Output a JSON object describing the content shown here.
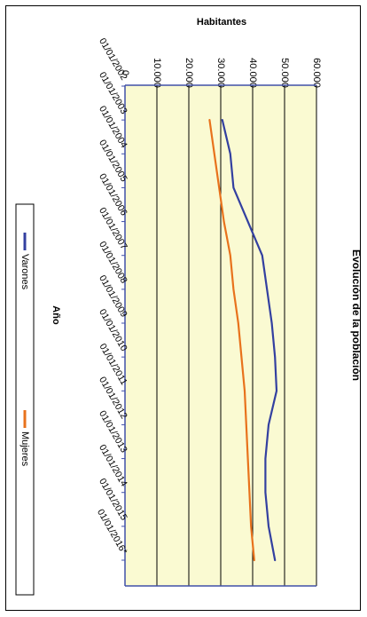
{
  "chart_data": {
    "type": "line",
    "title": "Evolución de la población",
    "xlabel": "Año",
    "ylabel": "Habitantes",
    "categories": [
      "01/01/2002",
      "01/01/2003",
      "01/01/2004",
      "01/01/2005",
      "01/01/2006",
      "01/01/2007",
      "01/01/2008",
      "01/01/2009",
      "01/01/2010",
      "01/01/2011",
      "01/01/2012",
      "01/01/2013",
      "01/01/2014",
      "01/01/2015",
      "01/01/2016*"
    ],
    "y_ticks": [
      "0",
      "10.000",
      "20.000",
      "30.000",
      "40.000",
      "50.000",
      "60.000"
    ],
    "ylim": [
      0,
      60000
    ],
    "grid": true,
    "legend_position": "bottom",
    "orientation": "rotated 90° clockwise",
    "plot_background": "#fafad2",
    "series": [
      {
        "name": "Varones",
        "color": "#3340a0",
        "x": [
          "01/01/2003",
          "01/01/2004",
          "01/01/2005",
          "01/01/2006",
          "01/01/2007",
          "01/01/2008",
          "01/01/2009",
          "01/01/2010",
          "01/01/2011",
          "01/01/2012",
          "01/01/2013",
          "01/01/2014",
          "01/01/2015",
          "01/01/2016*"
        ],
        "values": [
          30500,
          33000,
          34000,
          38500,
          43000,
          44500,
          46000,
          47000,
          47500,
          45000,
          44000,
          44000,
          45000,
          47000
        ]
      },
      {
        "name": "Mujeres",
        "color": "#e8721c",
        "x": [
          "01/01/2003",
          "01/01/2004",
          "01/01/2005",
          "01/01/2006",
          "01/01/2007",
          "01/01/2008",
          "01/01/2009",
          "01/01/2010",
          "01/01/2011",
          "01/01/2012",
          "01/01/2013",
          "01/01/2014",
          "01/01/2015",
          "01/01/2016*"
        ],
        "values": [
          26500,
          28000,
          29500,
          31000,
          33000,
          34000,
          35500,
          36500,
          37500,
          38000,
          38500,
          39000,
          39500,
          40500
        ]
      }
    ]
  }
}
